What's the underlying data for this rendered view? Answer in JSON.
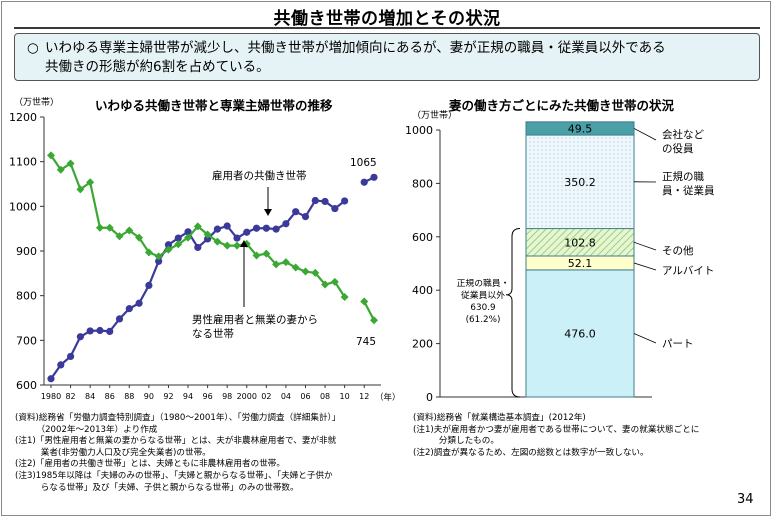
{
  "page": {
    "title": "共働き世帯の増加とその状況",
    "summary_mark": "○",
    "summary_line1": "いわゆる専業主婦世帯が減少し、共働き世帯が増加傾向にあるが、妻が正規の職員・従業員以外である",
    "summary_line2": "共働きの形態が約6割を占めている。",
    "page_number": "34"
  },
  "left_chart": {
    "ylabel": "（万世帯）",
    "xlabel": "（年）",
    "title": "いわゆる共働き世帯と専業主婦世帯の推移",
    "label_dual": "雇用者の共働き世帯",
    "label_single_1": "男性雇用者と無業の妻から",
    "label_single_2": "なる世帯",
    "end_label_dual": "1065",
    "end_label_single": "745",
    "colors": {
      "dual": "#3b3a9a",
      "single": "#3aa832"
    }
  },
  "right_chart": {
    "ylabel": "（万世帯）",
    "title": "妻の働き方ごとにみた共働き世帯の状況",
    "brace_label_1": "正規の職員・",
    "brace_label_2": "従業員以外",
    "brace_label_3": "630.9",
    "brace_label_4": "(61.2%)"
  },
  "left_notes": [
    "(資料)総務省「労働力調査特別調査」（1980～2001年）、「労働力調査（詳細集計）」",
    "　　　（2002年～2013年）より作成",
    "(注1)「男性雇用者と無業の妻からなる世帯」とは、夫が非農林雇用者で、妻が非就",
    "　　　業者(非労働力人口及び完全失業者)の世帯。",
    "(注2)「雇用者の共働き世帯」とは、夫婦ともに非農林雇用者の世帯。",
    "(注3)1985年以降は「夫婦のみの世帯」、「夫婦と親からなる世帯」、「夫婦と子供か",
    "　　　らなる世帯」及び「夫婦、子供と親からなる世帯」のみの世帯数。"
  ],
  "right_notes": [
    "(資料)総務省「就業構造基本調査」(2012年)",
    "(注1)夫が雇用者かつ妻が雇用者である世帯について、妻の就業状態ごとに",
    "　　　分類したもの。",
    "(注2)調査が異なるため、左図の総数とは数字が一致しない。"
  ],
  "chart_data": [
    {
      "type": "line",
      "title": "いわゆる共働き世帯と専業主婦世帯の推移",
      "ylabel": "（万世帯）",
      "xlabel": "（年）",
      "ylim": [
        600,
        1200
      ],
      "yticks": [
        600,
        700,
        800,
        900,
        1000,
        1100,
        1200
      ],
      "xlim": [
        1980,
        2013
      ],
      "xtick_values": [
        1980,
        1982,
        1984,
        1986,
        1988,
        1990,
        1992,
        1994,
        1996,
        1998,
        2000,
        2002,
        2004,
        2006,
        2008,
        2010,
        2012
      ],
      "xtick_labels": [
        "1980",
        "82",
        "84",
        "86",
        "88",
        "90",
        "92",
        "94",
        "96",
        "98",
        "2000",
        "02",
        "04",
        "06",
        "08",
        "10",
        "12"
      ],
      "grid": false,
      "series": [
        {
          "name": "雇用者の共働き世帯",
          "x": [
            1980,
            1981,
            1982,
            1983,
            1984,
            1985,
            1986,
            1987,
            1988,
            1989,
            1990,
            1991,
            1992,
            1993,
            1994,
            1995,
            1996,
            1997,
            1998,
            1999,
            2000,
            2001,
            2002,
            2003,
            2004,
            2005,
            2006,
            2007,
            2008,
            2009,
            2010,
            2012,
            2013
          ],
          "y": [
            614,
            645,
            664,
            708,
            721,
            722,
            720,
            748,
            771,
            783,
            823,
            877,
            914,
            929,
            943,
            908,
            927,
            949,
            956,
            929,
            942,
            951,
            951,
            949,
            961,
            988,
            977,
            1013,
            1011,
            995,
            1012,
            1054,
            1065
          ]
        },
        {
          "name": "男性雇用者と無業の妻からなる世帯",
          "x": [
            1980,
            1981,
            1982,
            1983,
            1984,
            1985,
            1986,
            1987,
            1988,
            1989,
            1990,
            1991,
            1992,
            1993,
            1994,
            1995,
            1996,
            1997,
            1998,
            1999,
            2000,
            2001,
            2002,
            2003,
            2004,
            2005,
            2006,
            2007,
            2008,
            2009,
            2010,
            2012,
            2013
          ],
          "y": [
            1114,
            1082,
            1096,
            1038,
            1054,
            952,
            952,
            933,
            946,
            930,
            897,
            888,
            903,
            915,
            930,
            955,
            937,
            921,
            912,
            912,
            916,
            890,
            894,
            870,
            875,
            863,
            854,
            851,
            825,
            831,
            797,
            787,
            745
          ]
        }
      ],
      "data_labels": [
        {
          "series": "雇用者の共働き世帯",
          "x": 2013,
          "text": "1065"
        },
        {
          "series": "男性雇用者と無業の妻からなる世帯",
          "x": 2013,
          "text": "745"
        }
      ]
    },
    {
      "type": "bar",
      "stacked": true,
      "title": "妻の働き方ごとにみた共働き世帯の状況",
      "ylabel": "（万世帯）",
      "ylim": [
        0,
        1000
      ],
      "yticks": [
        0,
        200,
        400,
        600,
        800,
        1000
      ],
      "grid": false,
      "segments": [
        {
          "name": "パート",
          "value": 476.0,
          "label": "476.0",
          "color": "#ccf0f8"
        },
        {
          "name": "アルバイト",
          "value": 52.1,
          "label": "52.1",
          "color": "#ffffcc"
        },
        {
          "name": "その他",
          "value": 102.8,
          "label": "102.8",
          "color": "#d8efb8"
        },
        {
          "name": "正規の職員・従業員",
          "value": 350.2,
          "label": "350.2",
          "color": "#eef7fb"
        },
        {
          "name": "会社などの役員",
          "value": 49.5,
          "label": "49.5",
          "color": "#4aa0a6"
        }
      ],
      "legend_labels": [
        {
          "segment": "会社などの役員",
          "lines": [
            "会社など",
            "の役員"
          ]
        },
        {
          "segment": "正規の職員・従業員",
          "lines": [
            "正規の職",
            "員・従業員"
          ]
        },
        {
          "segment": "その他",
          "lines": [
            "その他"
          ]
        },
        {
          "segment": "アルバイト",
          "lines": [
            "アルバイト"
          ]
        },
        {
          "segment": "パート",
          "lines": [
            "パート"
          ]
        }
      ]
    }
  ]
}
